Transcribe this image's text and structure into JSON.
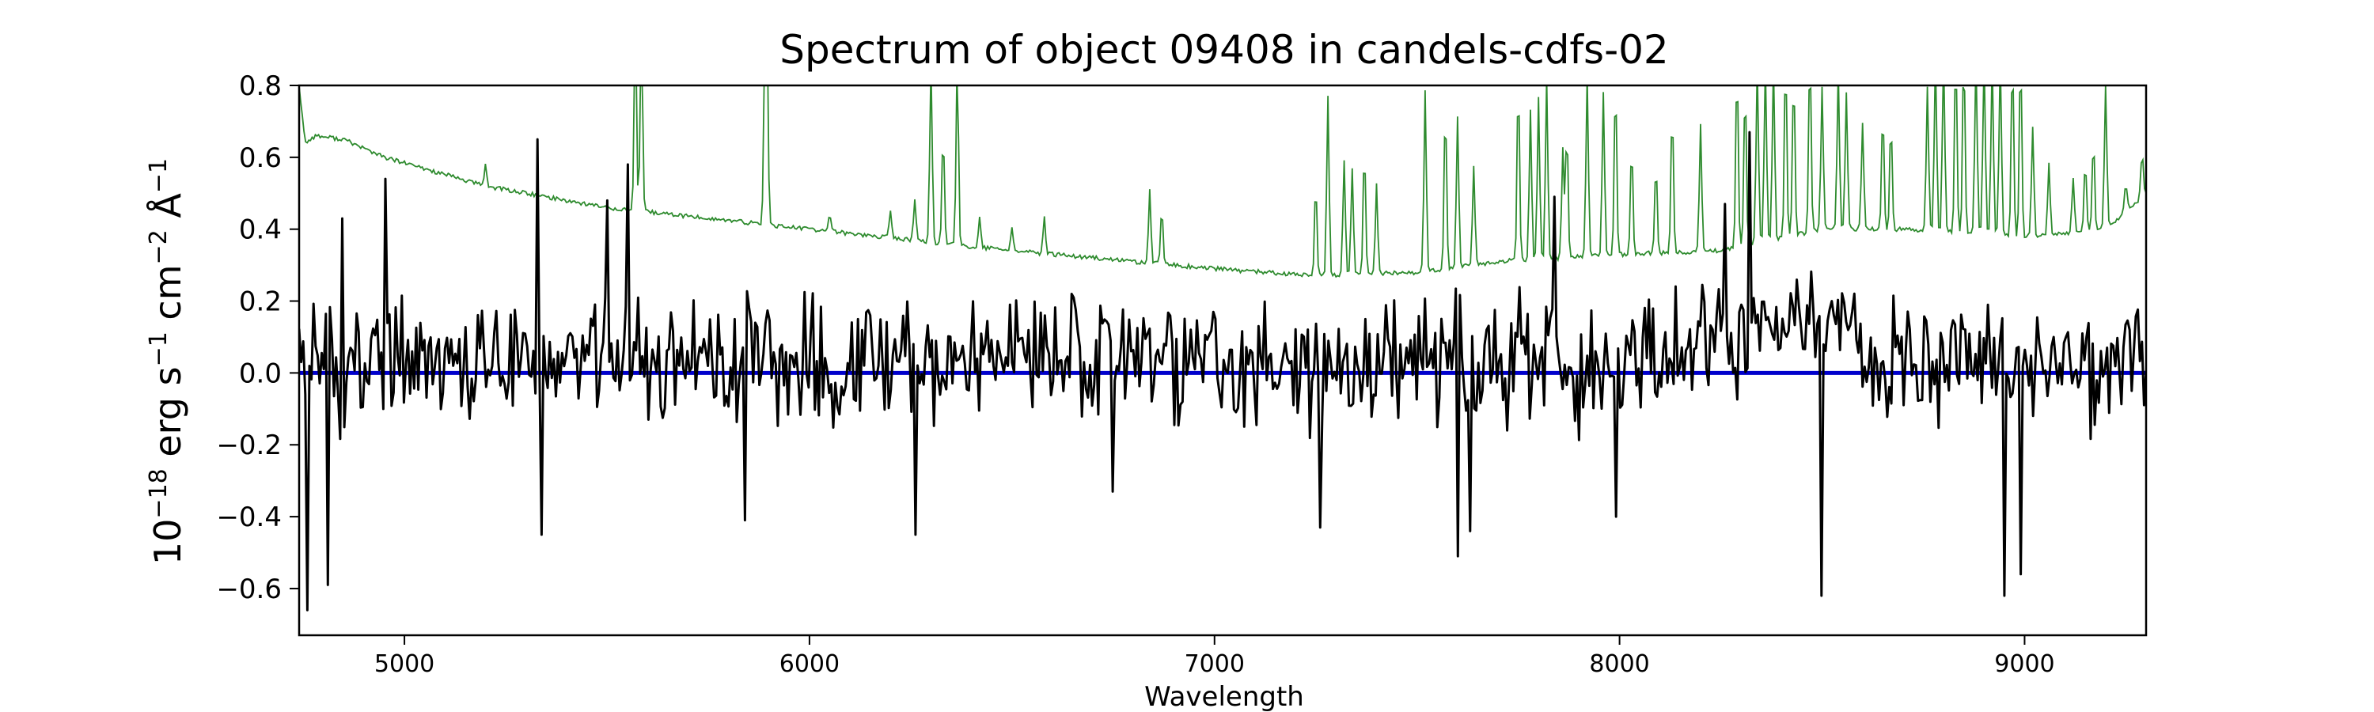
{
  "chart_data": {
    "type": "line",
    "title": "Spectrum of object 09408 in candels-cdfs-02",
    "xlabel": "Wavelength",
    "ylabel": {
      "prefix": "10",
      "prefix_exp": "−18",
      "unit1": " erg s",
      "unit1_exp": "−1",
      "unit2": " cm",
      "unit2_exp": "−2",
      "unit3": " Å",
      "unit3_exp": "−1"
    },
    "xlim": [
      4740,
      9300
    ],
    "ylim": [
      -0.73,
      0.8
    ],
    "xticks": [
      5000,
      6000,
      7000,
      8000,
      9000
    ],
    "xtick_labels": [
      "5000",
      "6000",
      "7000",
      "8000",
      "9000"
    ],
    "yticks": [
      -0.6,
      -0.4,
      -0.2,
      0.0,
      0.2,
      0.4,
      0.6,
      0.8
    ],
    "ytick_labels": [
      "−0.6",
      "−0.4",
      "−0.2",
      "0.0",
      "0.2",
      "0.4",
      "0.6",
      "0.8"
    ],
    "grid": false,
    "series": [
      {
        "role": "flux",
        "color": "#000000",
        "x_start": 4740,
        "x_end": 9300,
        "n_points": 900,
        "seed": 9408,
        "noise_amplitude": 0.2,
        "anchors": [
          [
            4760,
            -0.66
          ],
          [
            4810,
            -0.59
          ],
          [
            4845,
            0.43
          ],
          [
            4955,
            0.54
          ],
          [
            5330,
            0.65
          ],
          [
            5340,
            -0.45
          ],
          [
            5500,
            0.48
          ],
          [
            5550,
            0.58
          ],
          [
            5840,
            -0.41
          ],
          [
            6260,
            -0.45
          ],
          [
            6750,
            -0.33
          ],
          [
            7260,
            -0.43
          ],
          [
            7600,
            -0.51
          ],
          [
            7630,
            -0.44
          ],
          [
            7840,
            0.49
          ],
          [
            7990,
            -0.4
          ],
          [
            8260,
            0.47
          ],
          [
            8320,
            0.67
          ],
          [
            8500,
            -0.62
          ],
          [
            8950,
            -0.62
          ],
          [
            8990,
            -0.56
          ]
        ]
      },
      {
        "role": "noise",
        "color": "#2e8b2e",
        "baseline": [
          [
            4740,
            0.8
          ],
          [
            4755,
            0.64
          ],
          [
            4780,
            0.66
          ],
          [
            4850,
            0.65
          ],
          [
            4950,
            0.6
          ],
          [
            5200,
            0.52
          ],
          [
            5500,
            0.46
          ],
          [
            6000,
            0.4
          ],
          [
            6500,
            0.34
          ],
          [
            7000,
            0.29
          ],
          [
            7250,
            0.27
          ],
          [
            7500,
            0.28
          ],
          [
            7700,
            0.31
          ],
          [
            8000,
            0.33
          ],
          [
            8250,
            0.34
          ],
          [
            8500,
            0.4
          ],
          [
            8700,
            0.4
          ],
          [
            9000,
            0.38
          ],
          [
            9200,
            0.4
          ],
          [
            9300,
            0.5
          ]
        ],
        "spikes": [
          [
            5200,
            0.06
          ],
          [
            5570,
            0.5
          ],
          [
            5585,
            0.5
          ],
          [
            5890,
            0.45
          ],
          [
            5895,
            0.5
          ],
          [
            6050,
            0.05
          ],
          [
            6200,
            0.08
          ],
          [
            6260,
            0.12
          ],
          [
            6300,
            0.5
          ],
          [
            6330,
            0.3
          ],
          [
            6365,
            0.5
          ],
          [
            6420,
            0.08
          ],
          [
            6500,
            0.07
          ],
          [
            6580,
            0.1
          ],
          [
            6840,
            0.2
          ],
          [
            6870,
            0.15
          ],
          [
            7250,
            0.25
          ],
          [
            7280,
            0.5
          ],
          [
            7320,
            0.32
          ],
          [
            7340,
            0.3
          ],
          [
            7370,
            0.35
          ],
          [
            7400,
            0.25
          ],
          [
            7520,
            0.5
          ],
          [
            7570,
            0.45
          ],
          [
            7600,
            0.42
          ],
          [
            7640,
            0.28
          ],
          [
            7750,
            0.5
          ],
          [
            7780,
            0.42
          ],
          [
            7800,
            0.45
          ],
          [
            7820,
            0.5
          ],
          [
            7860,
            0.3
          ],
          [
            7870,
            0.35
          ],
          [
            7920,
            0.5
          ],
          [
            7960,
            0.45
          ],
          [
            7990,
            0.48
          ],
          [
            8030,
            0.3
          ],
          [
            8090,
            0.25
          ],
          [
            8130,
            0.4
          ],
          [
            8200,
            0.35
          ],
          [
            8290,
            0.5
          ],
          [
            8310,
            0.45
          ],
          [
            8340,
            0.5
          ],
          [
            8360,
            0.5
          ],
          [
            8380,
            0.5
          ],
          [
            8410,
            0.5
          ],
          [
            8430,
            0.45
          ],
          [
            8470,
            0.5
          ],
          [
            8500,
            0.4
          ],
          [
            8540,
            0.45
          ],
          [
            8560,
            0.38
          ],
          [
            8600,
            0.3
          ],
          [
            8650,
            0.33
          ],
          [
            8670,
            0.3
          ],
          [
            8760,
            0.4
          ],
          [
            8780,
            0.5
          ],
          [
            8800,
            0.5
          ],
          [
            8830,
            0.5
          ],
          [
            8850,
            0.5
          ],
          [
            8880,
            0.5
          ],
          [
            8900,
            0.5
          ],
          [
            8920,
            0.5
          ],
          [
            8940,
            0.5
          ],
          [
            8970,
            0.5
          ],
          [
            8990,
            0.5
          ],
          [
            9020,
            0.3
          ],
          [
            9060,
            0.2
          ],
          [
            9120,
            0.15
          ],
          [
            9150,
            0.2
          ],
          [
            9170,
            0.25
          ],
          [
            9200,
            0.4
          ],
          [
            9250,
            0.08
          ],
          [
            9290,
            0.12
          ]
        ]
      },
      {
        "role": "continuum",
        "color": "#0000cc",
        "values": [
          [
            4740,
            0.0
          ],
          [
            9300,
            0.0
          ]
        ]
      }
    ]
  }
}
